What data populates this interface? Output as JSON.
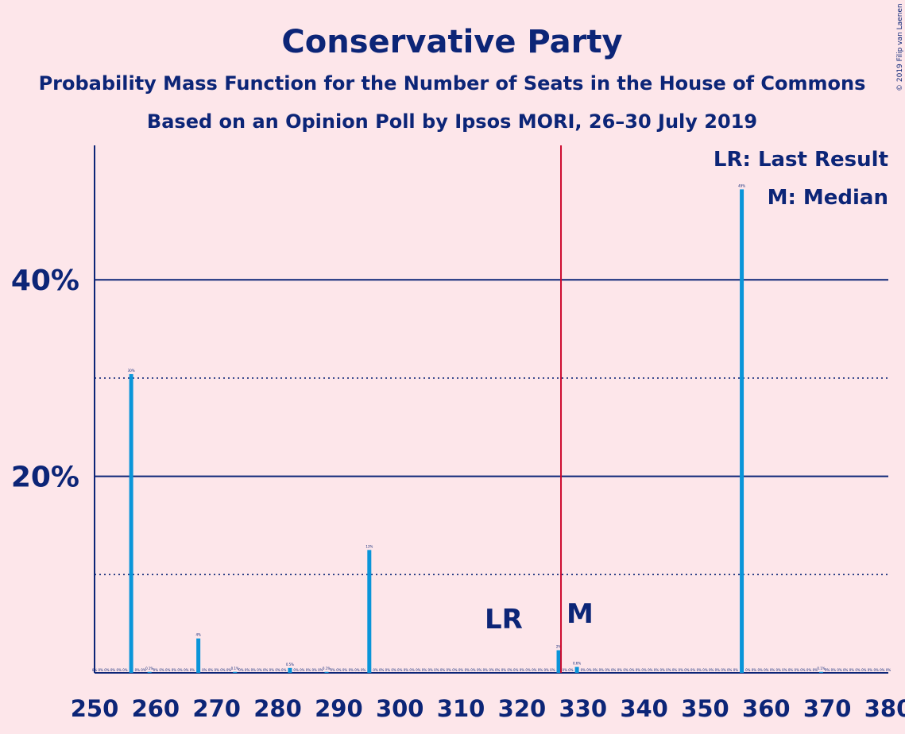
{
  "colors": {
    "background": "#fde6ea",
    "text": "#0c2577",
    "bar": "#0a95d9",
    "median_line": "#cc0a2e"
  },
  "chart_data": {
    "type": "bar",
    "title": "Conservative Party",
    "subtitle": "Probability Mass Function for the Number of Seats in the House of Commons",
    "subtitle2": "Based on an Opinion Poll by Ipsos MORI, 26–30 July 2019",
    "copyright": "© 2019 Filip van Laenen",
    "legend": [
      "LR: Last Result",
      "M: Median"
    ],
    "legend_placement": "top-right",
    "xlim": [
      250,
      380
    ],
    "ylim": [
      0,
      54
    ],
    "x_ticks": [
      250,
      260,
      270,
      280,
      290,
      300,
      310,
      320,
      330,
      340,
      350,
      360,
      370,
      380
    ],
    "y_ticks_major": [
      {
        "value": 20,
        "label": "20%"
      },
      {
        "value": 40,
        "label": "40%"
      }
    ],
    "y_ticks_minor": [
      10,
      30
    ],
    "annotations": {
      "last_result": {
        "label": "LR",
        "x": 317
      },
      "median": {
        "label": "M",
        "x": 326
      }
    },
    "bars": [
      {
        "x": 256,
        "value": 30.4,
        "label": "30%"
      },
      {
        "x": 259,
        "value": 0.1,
        "label": "0.1%"
      },
      {
        "x": 267,
        "value": 3.5,
        "label": "4%"
      },
      {
        "x": 273,
        "value": 0.1,
        "label": "0.1%"
      },
      {
        "x": 282,
        "value": 0.5,
        "label": "0.5%"
      },
      {
        "x": 288,
        "value": 0.1,
        "label": "0.1%"
      },
      {
        "x": 295,
        "value": 12.5,
        "label": "13%"
      },
      {
        "x": 326,
        "value": 2.3,
        "label": "2%"
      },
      {
        "x": 329,
        "value": 0.6,
        "label": "0.6%"
      },
      {
        "x": 356,
        "value": 49.2,
        "label": "49%"
      },
      {
        "x": 369,
        "value": 0.1,
        "label": "0.1%"
      }
    ],
    "zero_label": "0%"
  }
}
